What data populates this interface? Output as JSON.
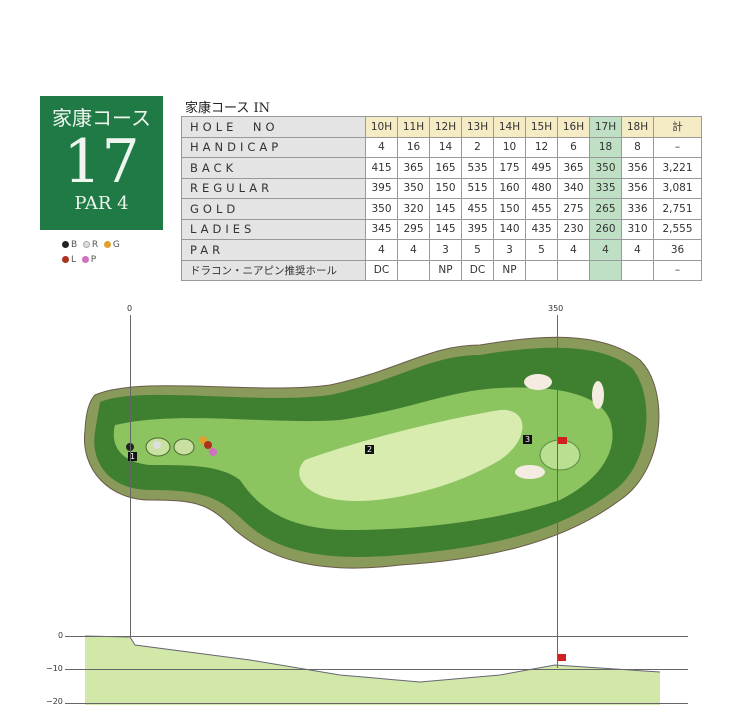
{
  "badge": {
    "course": "家康コース",
    "hole": "17",
    "par": "PAR 4"
  },
  "legend": [
    {
      "label": "B",
      "color": "#222222"
    },
    {
      "label": "R",
      "color": "#dddddd"
    },
    {
      "label": "G",
      "color": "#e0a030"
    },
    {
      "label": "L",
      "color": "#b03020"
    },
    {
      "label": "P",
      "color": "#d070c0"
    }
  ],
  "table": {
    "title": "家康コース IN",
    "rows": [
      {
        "label": "HOLE　NO",
        "cells": [
          "10H",
          "11H",
          "12H",
          "13H",
          "14H",
          "15H",
          "16H",
          "17H",
          "18H",
          "計"
        ]
      },
      {
        "label": "HANDICAP",
        "cells": [
          "4",
          "16",
          "14",
          "2",
          "10",
          "12",
          "6",
          "18",
          "8",
          "–"
        ]
      },
      {
        "label": "BACK",
        "cells": [
          "415",
          "365",
          "165",
          "535",
          "175",
          "495",
          "365",
          "350",
          "356",
          "3,221"
        ]
      },
      {
        "label": "REGULAR",
        "cells": [
          "395",
          "350",
          "150",
          "515",
          "160",
          "480",
          "340",
          "335",
          "356",
          "3,081"
        ]
      },
      {
        "label": "GOLD",
        "cells": [
          "350",
          "320",
          "145",
          "455",
          "150",
          "455",
          "275",
          "265",
          "336",
          "2,751"
        ]
      },
      {
        "label": "LADIES",
        "cells": [
          "345",
          "295",
          "145",
          "395",
          "140",
          "435",
          "230",
          "260",
          "310",
          "2,555"
        ]
      },
      {
        "label": "PAR",
        "cells": [
          "4",
          "4",
          "3",
          "5",
          "3",
          "5",
          "4",
          "4",
          "4",
          "36"
        ]
      },
      {
        "label": "ドラコン・ニアピン推奨ホール",
        "cells": [
          "DC",
          "",
          "NP",
          "DC",
          "NP",
          "",
          "",
          "",
          "",
          "–"
        ]
      }
    ]
  },
  "map": {
    "distance_start": "0",
    "distance_end": "350",
    "markers": [
      "1",
      "2",
      "3"
    ]
  },
  "profile": {
    "levels": [
      "0",
      "−10",
      "−20"
    ]
  },
  "colors": {
    "badge": "#1f7a45",
    "highlight": "#bfe0c4",
    "header": "#f5ecc6"
  }
}
